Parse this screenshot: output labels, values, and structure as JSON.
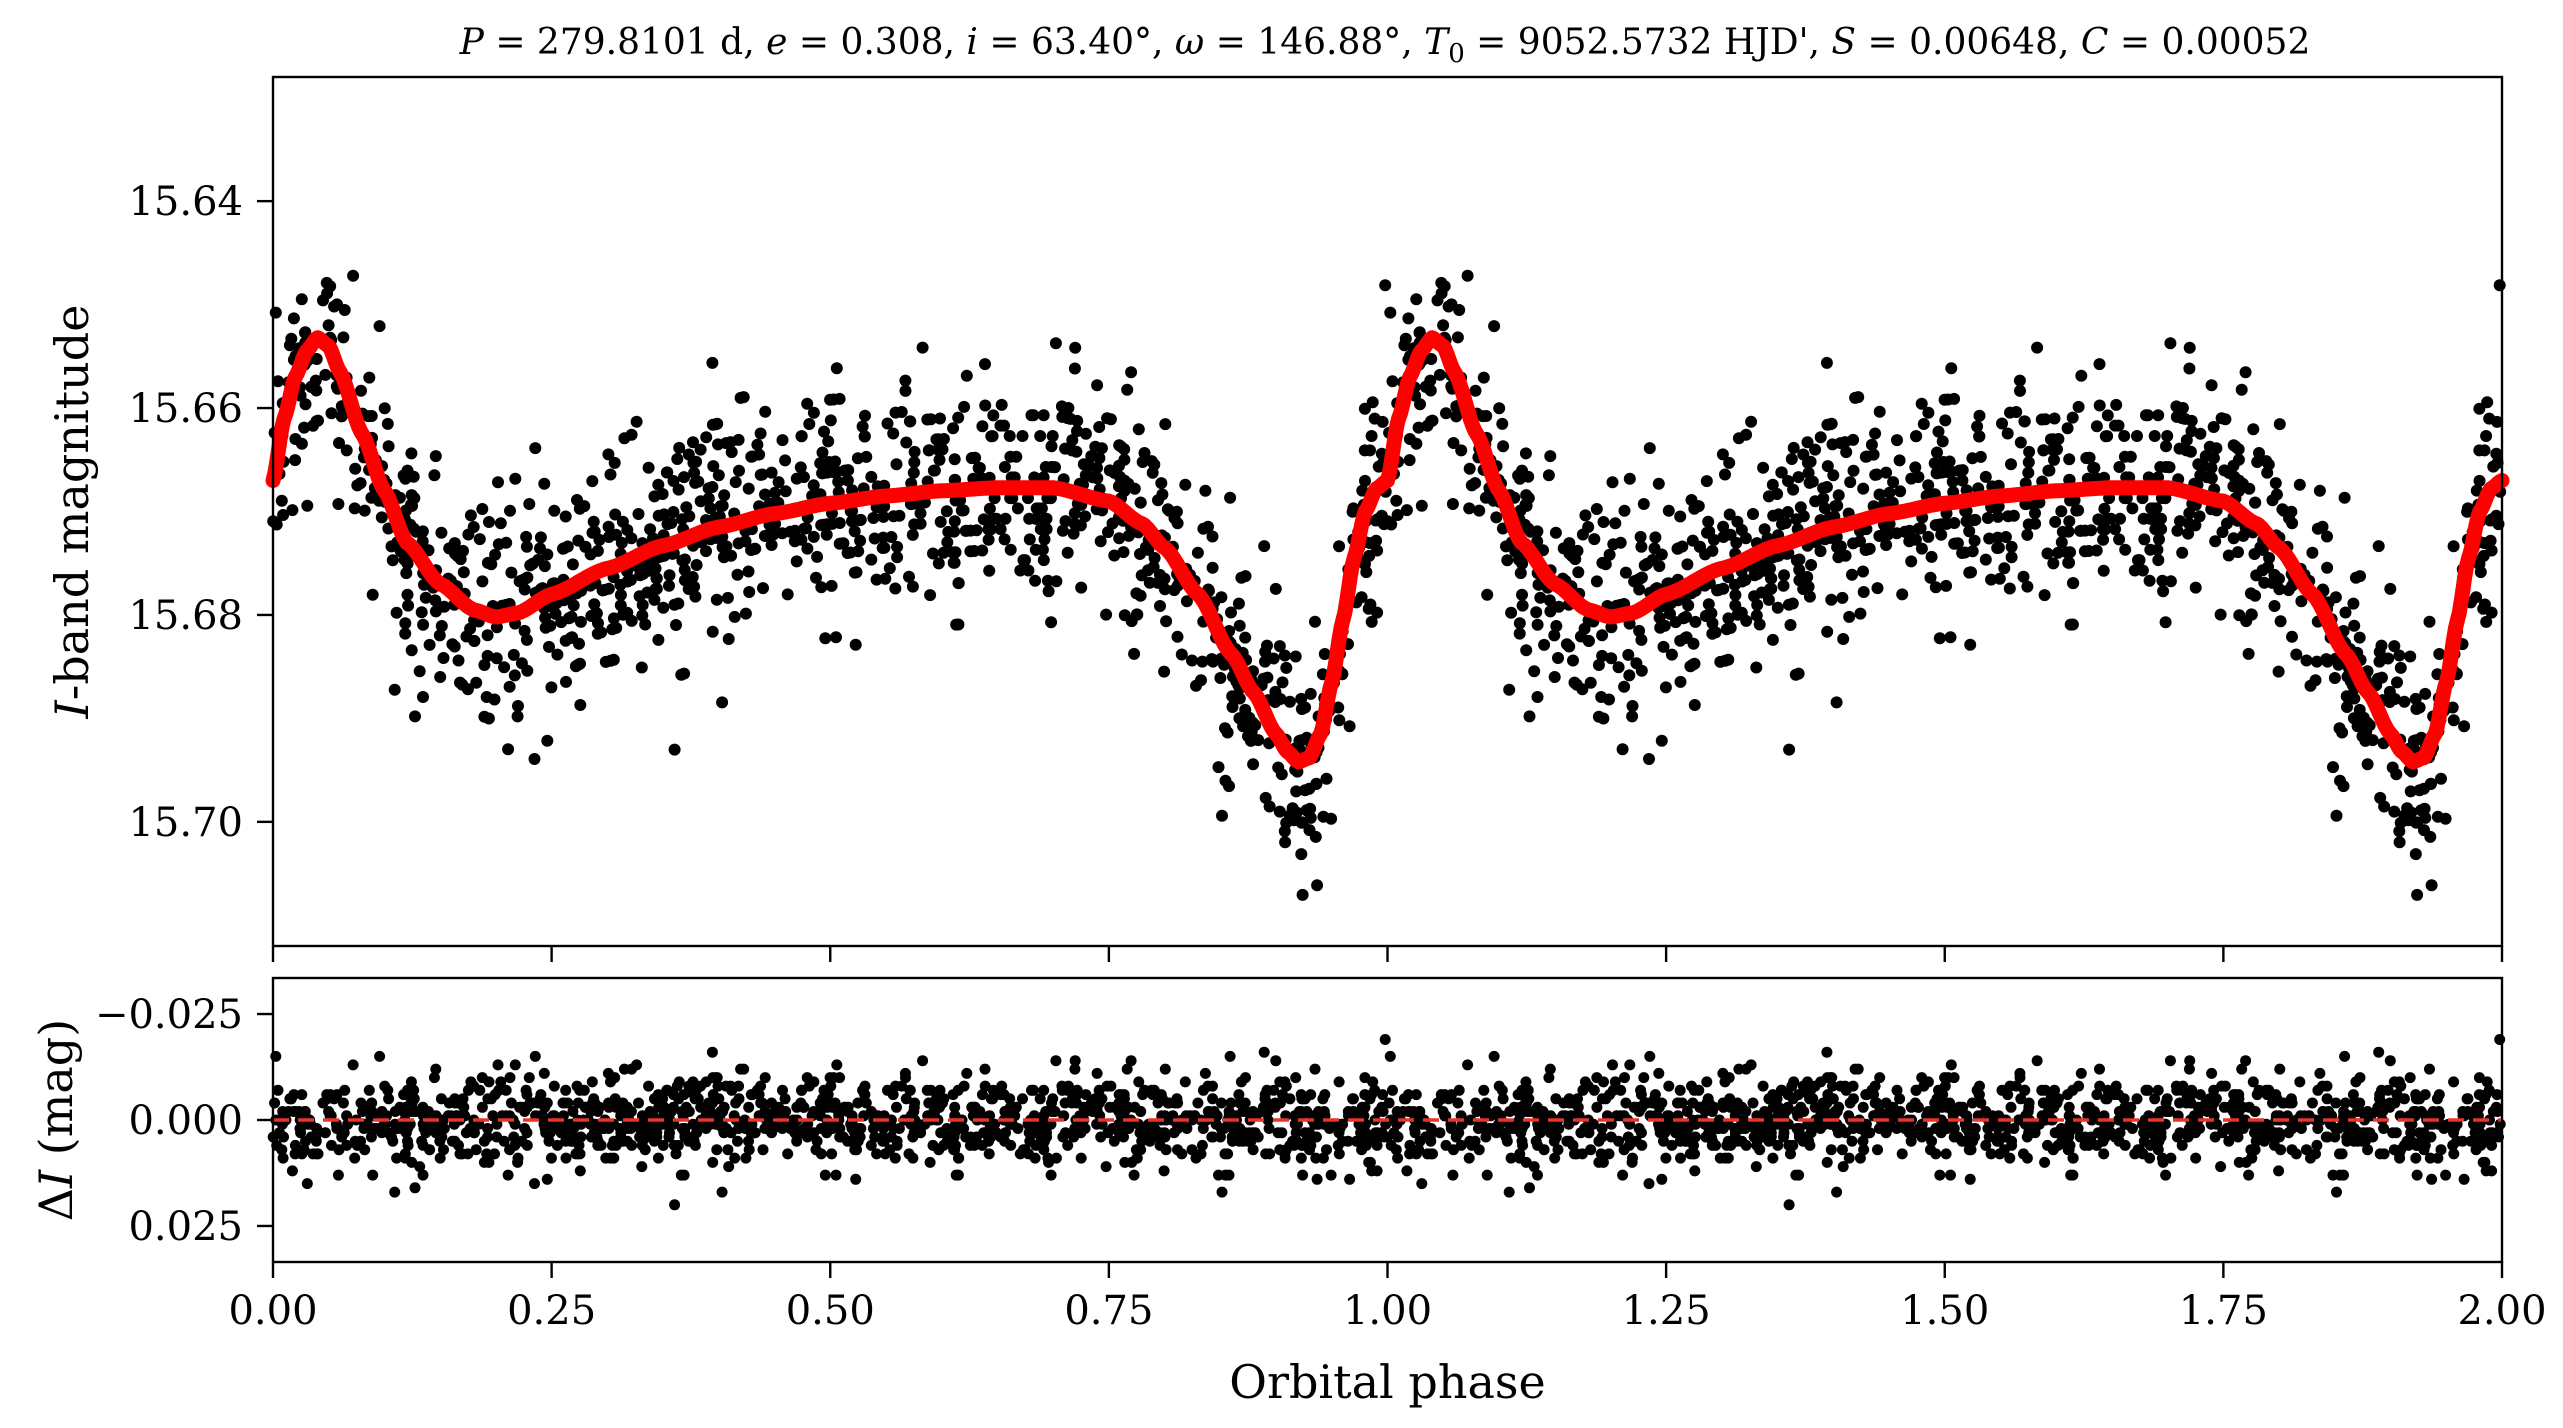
{
  "chart_data": [
    {
      "panel": "top",
      "type": "scatter",
      "title_parts": {
        "P_symbol": "P",
        "P_value": " = 279.8101 d, ",
        "e_symbol": "e",
        "e_value": " = 0.308, ",
        "i_symbol": "i",
        "i_value": " = 63.40°, ",
        "omega_symbol": "ω",
        "omega_value": " = 146.88°, ",
        "T_symbol": "T",
        "T_subscript": "0",
        "T_value": " = 9052.5732 HJD', ",
        "S_symbol": "S",
        "S_value": " = 0.00648, ",
        "C_symbol": "C",
        "C_value": " = 0.00052"
      },
      "ylabel_italic": "I",
      "ylabel_rest": "-band magnitude",
      "xlim": [
        0.0,
        2.0
      ],
      "ylim": [
        15.712,
        15.628
      ],
      "y_inverted": true,
      "yticks": [
        15.64,
        15.66,
        15.68,
        15.7
      ],
      "ytick_labels": [
        "15.64",
        "15.66",
        "15.68",
        "15.70"
      ],
      "xticks": [
        0.0,
        0.25,
        0.5,
        0.75,
        1.0,
        1.25,
        1.5,
        1.75,
        2.0
      ],
      "model_curve_knots": {
        "phase": [
          0.0,
          0.01,
          0.02,
          0.03,
          0.04,
          0.05,
          0.06,
          0.08,
          0.1,
          0.12,
          0.15,
          0.18,
          0.2,
          0.22,
          0.25,
          0.3,
          0.35,
          0.4,
          0.45,
          0.5,
          0.55,
          0.6,
          0.65,
          0.7,
          0.75,
          0.78,
          0.8,
          0.83,
          0.86,
          0.88,
          0.9,
          0.91,
          0.92,
          0.93,
          0.94,
          0.95,
          0.96,
          0.97,
          0.98,
          0.99,
          1.0
        ],
        "magnitude": [
          15.667,
          15.661,
          15.657,
          15.6545,
          15.6532,
          15.654,
          15.6565,
          15.6625,
          15.668,
          15.673,
          15.677,
          15.6795,
          15.6802,
          15.6798,
          15.678,
          15.6755,
          15.6733,
          15.6715,
          15.6702,
          15.6692,
          15.6685,
          15.668,
          15.6677,
          15.6677,
          15.669,
          15.6712,
          15.6735,
          15.678,
          15.6838,
          15.6875,
          15.6915,
          15.6932,
          15.6942,
          15.6938,
          15.6915,
          15.6865,
          15.6805,
          15.6745,
          15.67,
          15.6678,
          15.667
        ]
      },
      "observed_points": "dense black points scattered around the model curve, repeated over two orbital cycles"
    },
    {
      "panel": "bottom",
      "type": "scatter",
      "ylabel_prefix": "Δ",
      "ylabel_italic": "I",
      "ylabel_rest": " (mag)",
      "xlabel": "Orbital phase",
      "xlim": [
        0.0,
        2.0
      ],
      "ylim": [
        0.0335,
        -0.0335
      ],
      "y_inverted": true,
      "yticks": [
        -0.025,
        0.0,
        0.025
      ],
      "ytick_labels": [
        "−0.025",
        "0.000",
        "0.025"
      ],
      "xticks": [
        0.0,
        0.25,
        0.5,
        0.75,
        1.0,
        1.25,
        1.5,
        1.75,
        2.0
      ],
      "xtick_labels": [
        "0.00",
        "0.25",
        "0.50",
        "0.75",
        "1.00",
        "1.25",
        "1.50",
        "1.75",
        "2.00"
      ],
      "zero_line": 0.0,
      "residual_points": "dense black residual points scattered around zero"
    }
  ],
  "colors": {
    "points": "#000000",
    "model": "#ff0000",
    "zero_line": "#e8352a",
    "axes": "#000000"
  }
}
